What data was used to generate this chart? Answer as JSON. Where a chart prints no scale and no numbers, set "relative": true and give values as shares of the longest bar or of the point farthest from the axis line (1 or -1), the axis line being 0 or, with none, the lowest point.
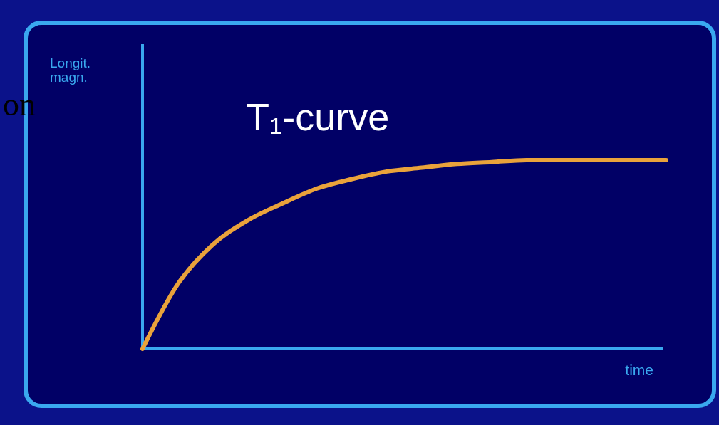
{
  "chart_data": {
    "type": "line",
    "title": "T₁-curve",
    "xlabel": "time",
    "relative": true,
    "annotations": [
      "on",
      "Longit. magn."
    ],
    "categories": [
      null,
      null,
      null,
      null,
      null,
      null,
      null,
      null,
      null,
      null,
      null,
      null,
      null,
      null,
      null,
      null
    ],
    "series": [
      {
        "color": "#e9a23b",
        "values": [
          0,
          0.34,
          0.55,
          0.68,
          0.77,
          0.85,
          0.9,
          0.94,
          0.96,
          0.98,
          0.99,
          1,
          1,
          1,
          1,
          1
        ]
      }
    ],
    "marker": "none",
    "line_style": "solid"
  }
}
